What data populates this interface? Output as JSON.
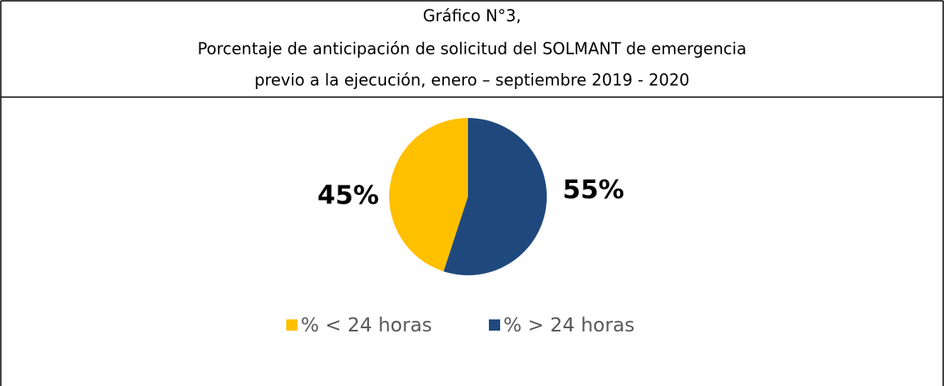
{
  "chart_data": {
    "type": "pie",
    "title": "Gráfico N°3,",
    "subtitle": [
      "Porcentaje de anticipación de solicitud del SOLMANT de emergencia",
      "previo a la ejecución, enero – septiembre 2019 - 2020"
    ],
    "categories": [
      "% < 24 horas",
      "% > 24 horas"
    ],
    "values": [
      45,
      55
    ],
    "value_labels": [
      "45%",
      "55%"
    ],
    "colors": [
      "#ffc000",
      "#1f497d"
    ],
    "legend": "bottom"
  }
}
